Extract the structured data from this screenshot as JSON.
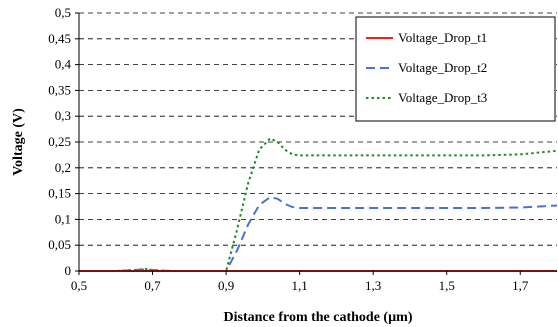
{
  "chart_data": {
    "type": "line",
    "title": "",
    "xlabel": "Distance from the cathode (µm)",
    "ylabel": "Voltage (V)",
    "xlim": [
      0.5,
      1.8
    ],
    "ylim": [
      0,
      0.5
    ],
    "x_ticks": [
      "0,5",
      "0,7",
      "0,9",
      "1,1",
      "1,3",
      "1,5",
      "1,7"
    ],
    "x_tick_values": [
      0.5,
      0.7,
      0.9,
      1.1,
      1.3,
      1.5,
      1.7
    ],
    "y_ticks": [
      "0",
      "0,05",
      "0,1",
      "0,15",
      "0,2",
      "0,25",
      "0,3",
      "0,35",
      "0,4",
      "0,45",
      "0,5"
    ],
    "y_tick_values": [
      0,
      0.05,
      0.1,
      0.15,
      0.2,
      0.25,
      0.3,
      0.35,
      0.4,
      0.45,
      0.5
    ],
    "grid": "horizontal dashed",
    "legend_position": "top-right",
    "series": [
      {
        "name": "Voltage_Drop_t1",
        "color": "#e8231f",
        "dash": "solid",
        "x": [
          0.5,
          0.6,
          0.7,
          0.8,
          0.9,
          1.0,
          1.1,
          1.2,
          1.3,
          1.4,
          1.5,
          1.6,
          1.7,
          1.8
        ],
        "y": [
          0,
          0,
          0,
          0,
          0,
          0,
          0,
          0,
          0,
          0,
          0,
          0,
          0,
          0
        ]
      },
      {
        "name": "Voltage_Drop_t2",
        "color": "#4a72d4",
        "dash": "long-dash",
        "x": [
          0.5,
          0.6,
          0.65,
          0.68,
          0.7,
          0.75,
          0.8,
          0.9,
          0.93,
          0.96,
          0.99,
          1.02,
          1.04,
          1.06,
          1.08,
          1.1,
          1.15,
          1.2,
          1.3,
          1.4,
          1.5,
          1.6,
          1.7,
          1.8
        ],
        "y": [
          0,
          0,
          0.002,
          0.003,
          0.002,
          0,
          0,
          0,
          0.04,
          0.09,
          0.128,
          0.143,
          0.14,
          0.13,
          0.124,
          0.122,
          0.122,
          0.122,
          0.122,
          0.122,
          0.122,
          0.122,
          0.123,
          0.127
        ]
      },
      {
        "name": "Voltage_Drop_t3",
        "color": "#1f8a1f",
        "dash": "dotted",
        "x": [
          0.5,
          0.6,
          0.65,
          0.68,
          0.7,
          0.75,
          0.8,
          0.9,
          0.93,
          0.96,
          0.99,
          1.02,
          1.04,
          1.06,
          1.08,
          1.1,
          1.15,
          1.2,
          1.3,
          1.4,
          1.5,
          1.6,
          1.7,
          1.8
        ],
        "y": [
          0,
          0,
          0.002,
          0.004,
          0.002,
          0,
          0,
          0,
          0.08,
          0.17,
          0.235,
          0.257,
          0.25,
          0.235,
          0.226,
          0.224,
          0.224,
          0.224,
          0.224,
          0.224,
          0.224,
          0.224,
          0.226,
          0.233
        ]
      }
    ]
  }
}
